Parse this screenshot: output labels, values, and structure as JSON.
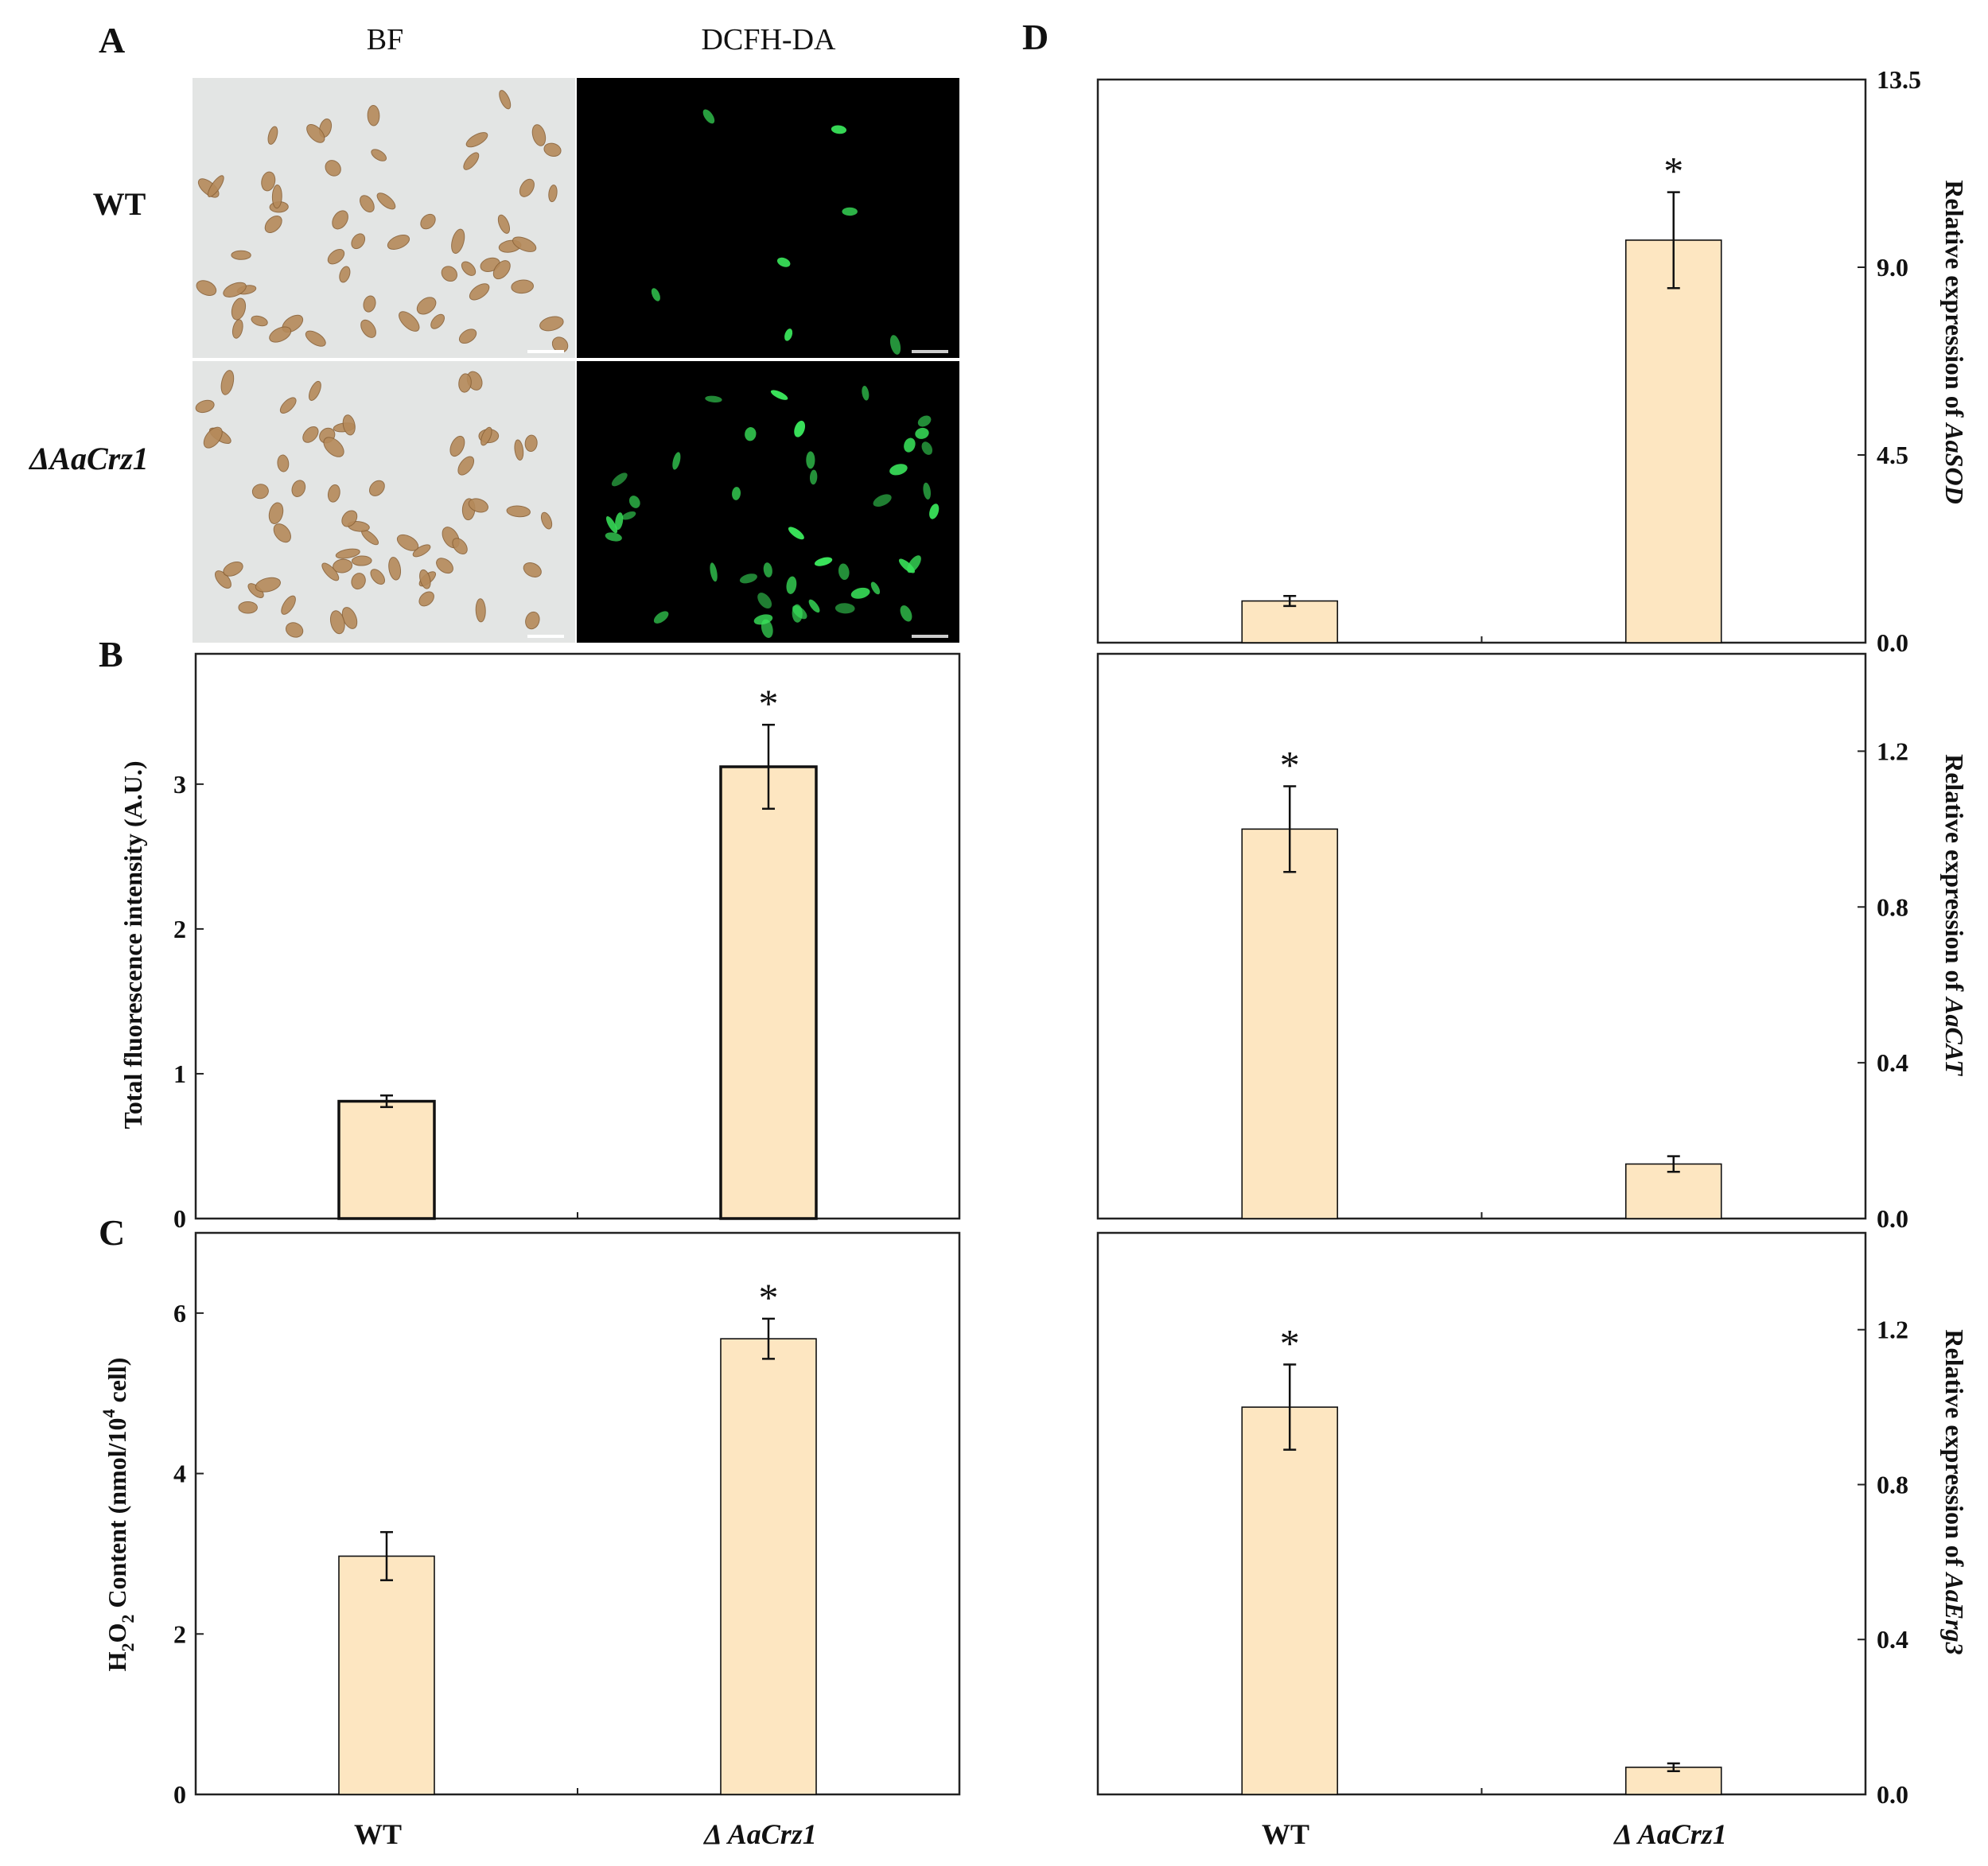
{
  "panel_labels": {
    "a": "A",
    "b": "B",
    "c": "C",
    "d": "D"
  },
  "micrograph": {
    "columns": [
      "BF",
      "DCFH-DA"
    ],
    "rows": [
      {
        "label": "WT",
        "italic": false
      },
      {
        "label": "ΔAaCrz1",
        "italic": true
      }
    ]
  },
  "colors": {
    "bar_fill": "#fde6c1",
    "bar_edge": "#111111",
    "brightfield_bg": "#e3e5e4",
    "cell_brown": "#b58a5a",
    "fluor_bg": "#000000",
    "fluor_green": "#39e25a"
  },
  "chart_data": [
    {
      "id": "B",
      "type": "bar",
      "categories": [
        "WT",
        "ΔAaCrz1"
      ],
      "values": [
        0.81,
        3.12
      ],
      "errors": [
        0.04,
        0.29
      ],
      "significance": [
        "",
        "*"
      ],
      "ylabel": "Total fluorescence intensity (A.U.)",
      "ylim": [
        0,
        3.9
      ],
      "yticks": [
        "0",
        "1",
        "2",
        "3"
      ],
      "ytick_values": [
        0,
        1,
        2,
        3
      ],
      "axis_side": "left"
    },
    {
      "id": "C",
      "type": "bar",
      "categories": [
        "WT",
        "ΔAaCrz1"
      ],
      "category_labels": [
        "WT",
        "Δ AaCrz1"
      ],
      "values": [
        2.97,
        5.68
      ],
      "errors": [
        0.3,
        0.25
      ],
      "significance": [
        "",
        "*"
      ],
      "ylabel": "H2O2 Content (nmol/104 cell)",
      "ylabel_parts": {
        "a": "H",
        "sub1": "2",
        "b": "O",
        "sub2": "2",
        "c": " Content (nmol/10",
        "sup": "4",
        "d": " cell)"
      },
      "ylim": [
        0,
        7.0
      ],
      "yticks": [
        "0",
        "2",
        "4",
        "6"
      ],
      "ytick_values": [
        0,
        2,
        4,
        6
      ],
      "axis_side": "left"
    },
    {
      "id": "D-SOD",
      "type": "bar",
      "categories": [
        "WT",
        "ΔAaCrz1"
      ],
      "values": [
        1.0,
        9.65
      ],
      "errors": [
        0.12,
        1.15
      ],
      "significance": [
        "",
        "*"
      ],
      "ylabel": "Relative expression of AaSOD",
      "ylabel_parts": {
        "prefix": "Relative expression of ",
        "gene": "AaSOD"
      },
      "ylim": [
        0,
        13.5
      ],
      "yticks": [
        "0.0",
        "4.5",
        "9.0",
        "13.5"
      ],
      "ytick_values": [
        0,
        4.5,
        9.0,
        13.5
      ],
      "axis_side": "right"
    },
    {
      "id": "D-CAT",
      "type": "bar",
      "categories": [
        "WT",
        "ΔAaCrz1"
      ],
      "values": [
        1.0,
        0.14
      ],
      "errors": [
        0.11,
        0.02
      ],
      "significance": [
        "*",
        ""
      ],
      "ylabel": "Relative expression of AaCAT",
      "ylabel_parts": {
        "prefix": "Relative expression of ",
        "gene": "AaCAT"
      },
      "ylim": [
        0,
        1.45
      ],
      "yticks": [
        "0.0",
        "0.4",
        "0.8",
        "1.2"
      ],
      "ytick_values": [
        0,
        0.4,
        0.8,
        1.2
      ],
      "axis_side": "right"
    },
    {
      "id": "D-ERG3",
      "type": "bar",
      "categories": [
        "WT",
        "ΔAaCrz1"
      ],
      "category_labels": [
        "WT",
        "Δ AaCrz1"
      ],
      "values": [
        1.0,
        0.07
      ],
      "errors": [
        0.11,
        0.01
      ],
      "significance": [
        "*",
        ""
      ],
      "ylabel": "Relative expression of AaErg3",
      "ylabel_parts": {
        "prefix": "Relative expression of ",
        "gene": "AaErg3"
      },
      "ylim": [
        0,
        1.45
      ],
      "yticks": [
        "0.0",
        "0.4",
        "0.8",
        "1.2"
      ],
      "ytick_values": [
        0,
        0.4,
        0.8,
        1.2
      ],
      "axis_side": "right"
    }
  ]
}
